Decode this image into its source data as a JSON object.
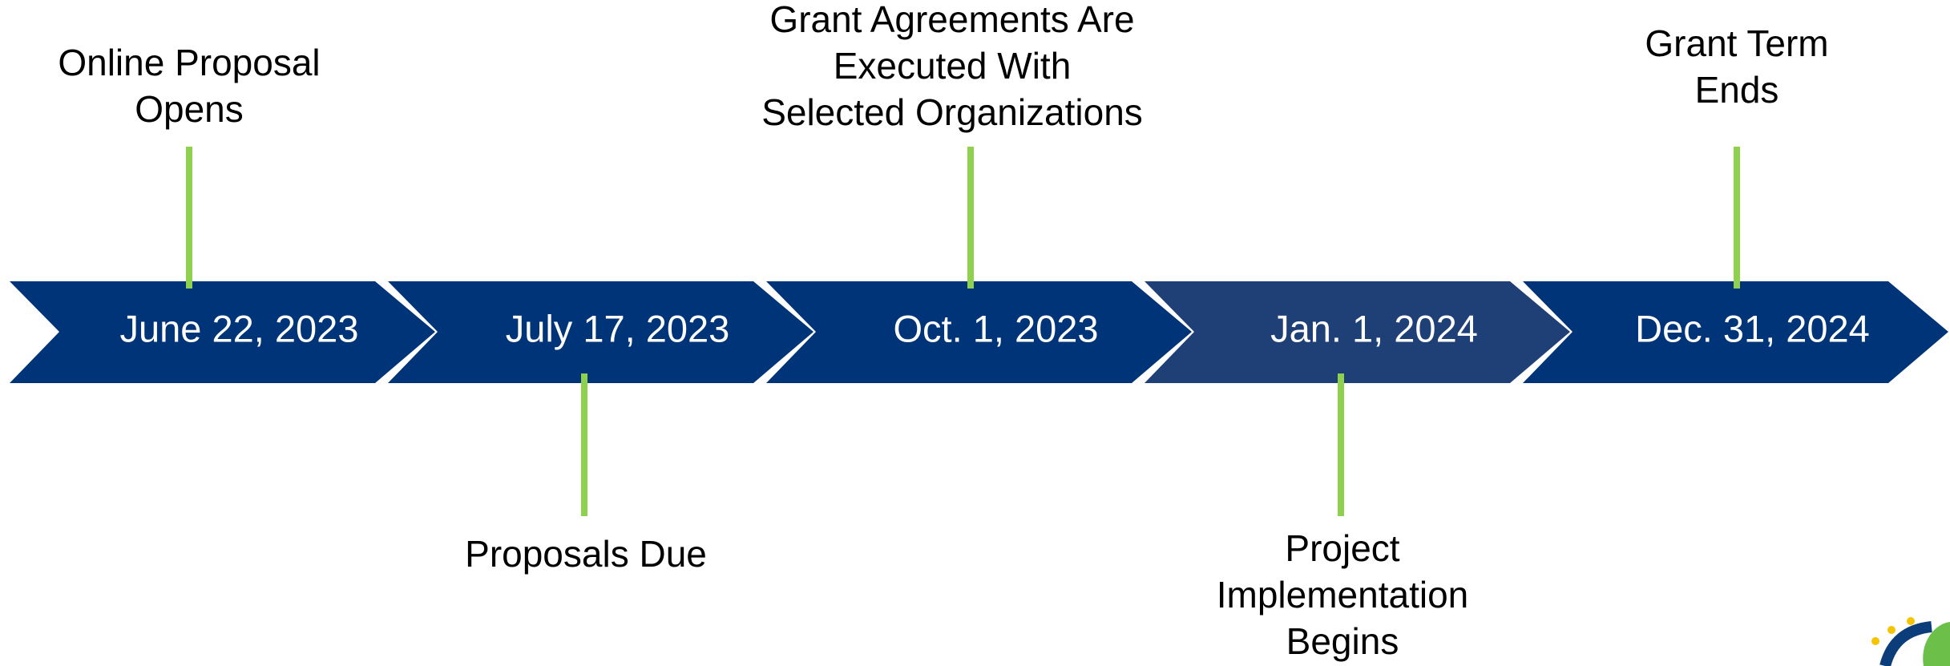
{
  "milestones": [
    {
      "date": "June 22, 2023",
      "label": [
        "Online Proposal",
        "Opens"
      ]
    },
    {
      "date": "July 17, 2023",
      "label": [
        "Proposals Due"
      ]
    },
    {
      "date": "Oct. 1, 2023",
      "label": [
        "Grant Agreements Are",
        "Executed With",
        "Selected Organizations"
      ]
    },
    {
      "date": "Jan. 1, 2024",
      "label": [
        "Project",
        "Implementation",
        "Begins"
      ]
    },
    {
      "date": "Dec. 31, 2024",
      "label": [
        "Grant Term",
        "Ends"
      ]
    }
  ]
}
